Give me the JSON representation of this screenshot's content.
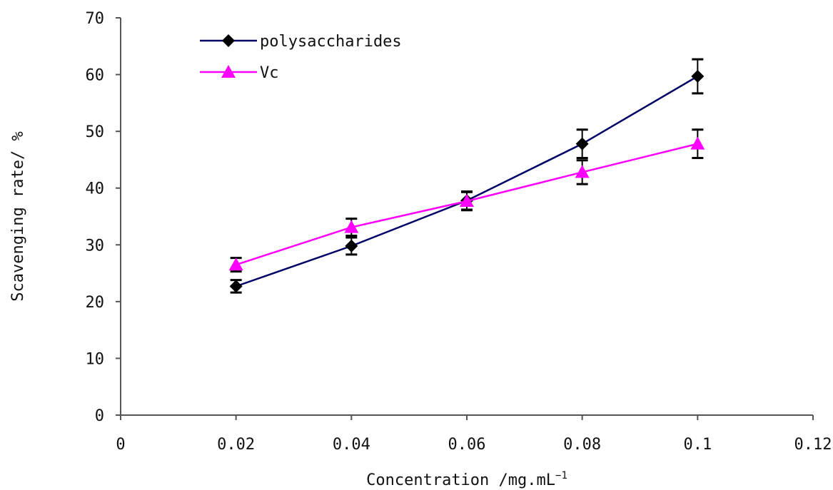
{
  "chart_data": {
    "type": "line",
    "title": "",
    "xlabel": "Concentration /mg.mL",
    "xlabel_superscript": "−1",
    "ylabel": "Scavenging rate/ %",
    "xlim": [
      0,
      0.12
    ],
    "ylim": [
      0,
      70
    ],
    "x_ticks": [
      0,
      0.02,
      0.04,
      0.06,
      0.08,
      0.1,
      0.12
    ],
    "x_tick_labels": [
      "0",
      "0.02",
      "0.04",
      "0.06",
      "0.08",
      "0.1",
      "0.12"
    ],
    "y_ticks": [
      0,
      10,
      20,
      30,
      40,
      50,
      60,
      70
    ],
    "y_tick_labels": [
      "0",
      "10",
      "20",
      "30",
      "40",
      "50",
      "60",
      "70"
    ],
    "grid": false,
    "legend_position": "top-left",
    "series": [
      {
        "name": "polysaccharides",
        "color": "#000066",
        "marker_color": "#000000",
        "marker": "diamond",
        "x": [
          0.02,
          0.04,
          0.06,
          0.08,
          0.1
        ],
        "values": [
          22.7,
          29.8,
          37.8,
          47.8,
          59.7
        ],
        "errors": [
          1.1,
          1.5,
          1.6,
          2.5,
          3.0
        ]
      },
      {
        "name": "Vc",
        "color": "#ff00ff",
        "marker_color": "#ff00ff",
        "marker": "triangle",
        "x": [
          0.02,
          0.04,
          0.06,
          0.08,
          0.1
        ],
        "values": [
          26.5,
          33.1,
          37.7,
          42.8,
          47.8
        ],
        "errors": [
          1.2,
          1.5,
          1.6,
          2.1,
          2.5
        ]
      }
    ]
  }
}
